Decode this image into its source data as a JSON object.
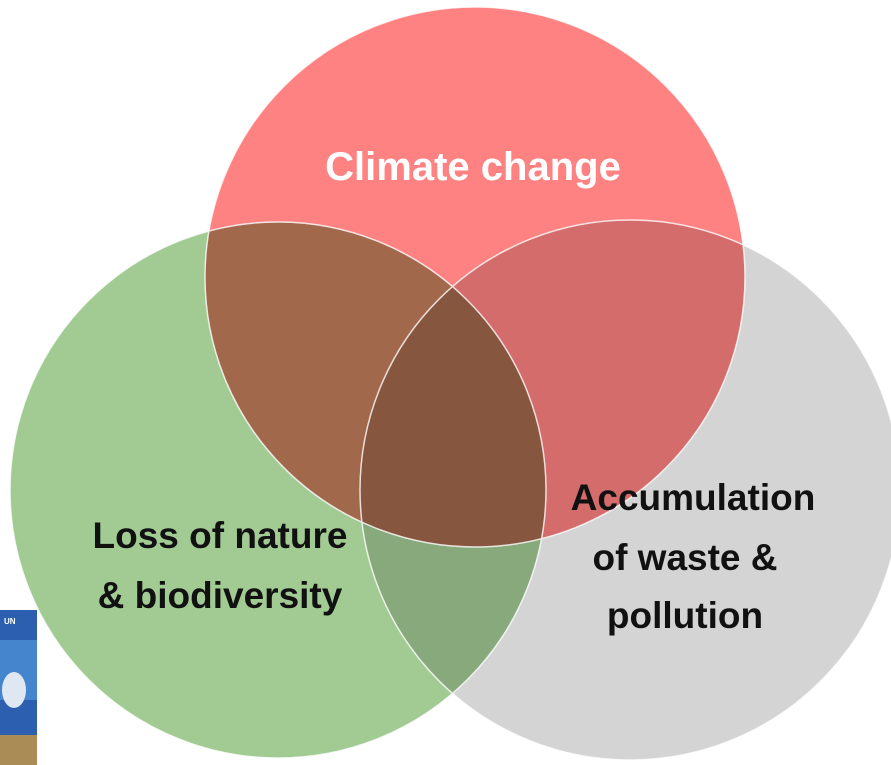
{
  "circles": [
    {
      "label": "Climate change"
    },
    {
      "label_lines": [
        "Loss of nature",
        "& biodiversity"
      ]
    },
    {
      "label_lines": [
        "Accumulation",
        "of waste &",
        "pollution"
      ]
    }
  ],
  "thumbnail": {
    "label": "UN"
  }
}
